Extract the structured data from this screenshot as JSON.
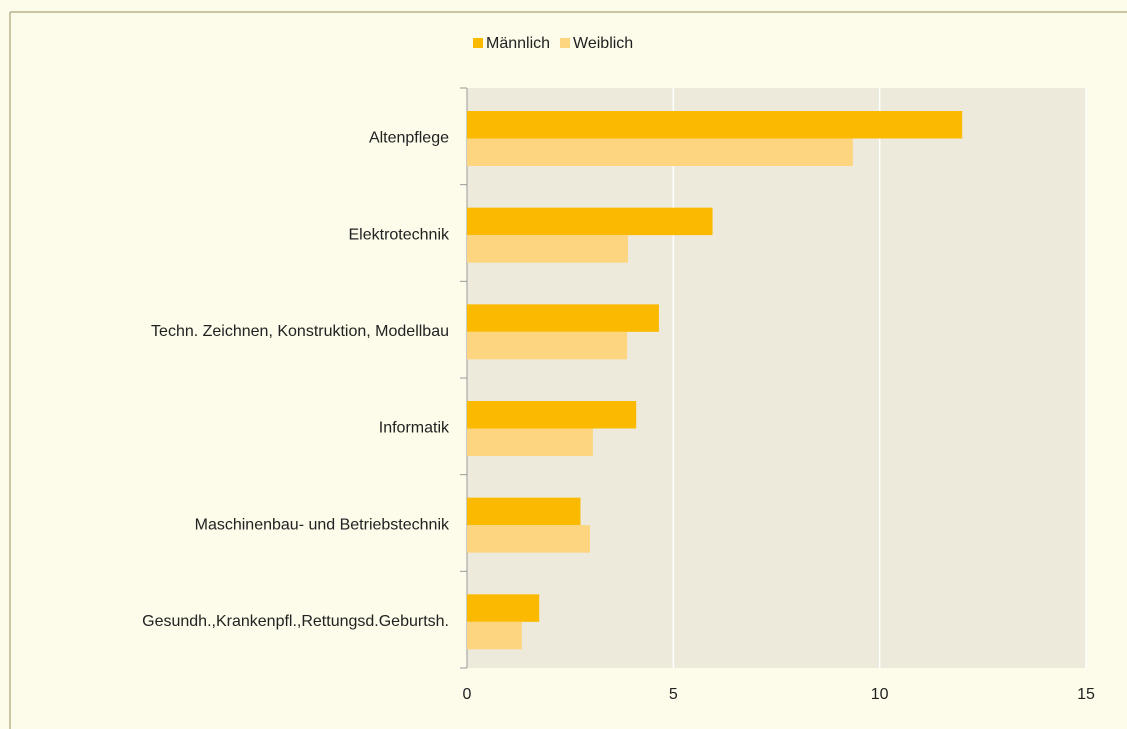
{
  "chart_data": {
    "type": "hbar",
    "categories": [
      "Altenpflege",
      "Elektrotechnik",
      "Techn. Zeichnen, Konstruktion, Modellbau",
      "Informatik",
      "Maschinenbau- und Betriebstechnik",
      "Gesundh.,Krankenpfl.,Rettungsd.Geburtsh."
    ],
    "series": [
      {
        "name": "Männlich",
        "color": "#fbb900",
        "values": [
          12.0,
          5.95,
          4.65,
          4.1,
          2.75,
          1.75
        ]
      },
      {
        "name": "Weiblich",
        "color": "#fdd57e",
        "values": [
          9.35,
          3.9,
          3.88,
          3.05,
          2.98,
          1.33
        ]
      }
    ],
    "xlim": [
      0,
      15
    ],
    "xticks": [
      0,
      5,
      10,
      15
    ],
    "grid": true,
    "legend": "top"
  }
}
